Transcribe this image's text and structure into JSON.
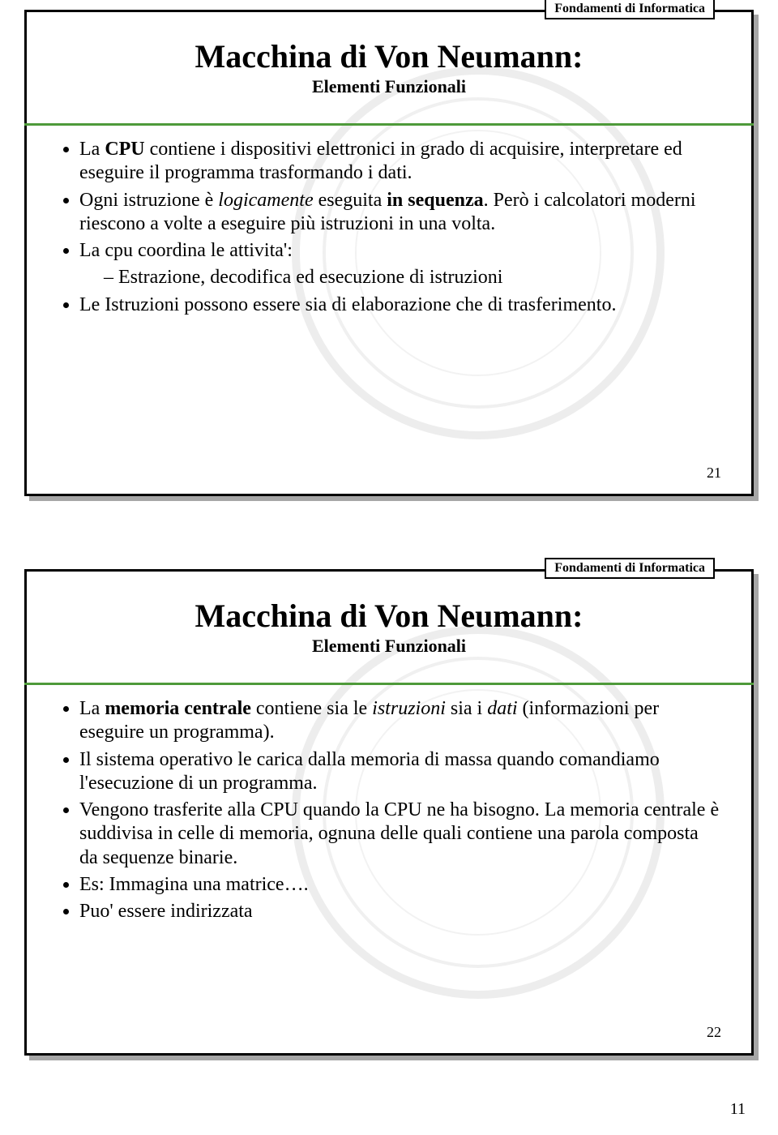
{
  "colors": {
    "accent_green": "#4e9a3a",
    "badge_border": "#000000",
    "frame_border": "#000000",
    "text": "#000000",
    "background": "#ffffff"
  },
  "page_number": "11",
  "slides": [
    {
      "header_badge": "Fondamenti di Informatica",
      "title_main": "Macchina di Von Neumann:",
      "title_sub": "Elementi Funzionali",
      "slide_number": "21",
      "bullets": [
        {
          "segments": [
            {
              "t": "La "
            },
            {
              "t": "CPU",
              "bold": true
            },
            {
              "t": " contiene i dispositivi elettronici in grado di acquisire, interpretare ed eseguire il programma trasformando i dati."
            }
          ]
        },
        {
          "segments": [
            {
              "t": "Ogni istruzione è "
            },
            {
              "t": "logicamente",
              "italic": true
            },
            {
              "t": " eseguita "
            },
            {
              "t": "in sequenza",
              "bold": true
            },
            {
              "t": ". Però i calcolatori moderni riescono a volte a eseguire più istruzioni in una volta."
            }
          ]
        },
        {
          "segments": [
            {
              "t": "La cpu coordina le attivita':"
            }
          ],
          "sub": [
            {
              "segments": [
                {
                  "t": "Estrazione, decodifica ed esecuzione di istruzioni"
                }
              ]
            }
          ]
        },
        {
          "segments": [
            {
              "t": "Le Istruzioni possono essere sia di elaborazione che di trasferimento."
            }
          ]
        }
      ]
    },
    {
      "header_badge": "Fondamenti di Informatica",
      "title_main": "Macchina di Von Neumann:",
      "title_sub": "Elementi Funzionali",
      "slide_number": "22",
      "bullets": [
        {
          "segments": [
            {
              "t": "La "
            },
            {
              "t": "memoria centrale",
              "bold": true
            },
            {
              "t": " contiene sia le "
            },
            {
              "t": "istruzioni",
              "italic": true
            },
            {
              "t": " sia i "
            },
            {
              "t": "dati",
              "italic": true
            },
            {
              "t": " (informazioni per eseguire un programma)."
            }
          ]
        },
        {
          "segments": [
            {
              "t": "Il sistema operativo le carica dalla memoria di massa quando comandiamo l'esecuzione di un programma."
            }
          ]
        },
        {
          "segments": [
            {
              "t": "Vengono trasferite alla CPU quando la CPU ne ha bisogno. La memoria centrale è suddivisa in celle di memoria, ognuna delle quali contiene una parola composta da sequenze binarie."
            }
          ]
        },
        {
          "segments": [
            {
              "t": "Es: Immagina una matrice…."
            }
          ]
        },
        {
          "segments": [
            {
              "t": "Puo' essere indirizzata"
            }
          ]
        }
      ]
    }
  ]
}
